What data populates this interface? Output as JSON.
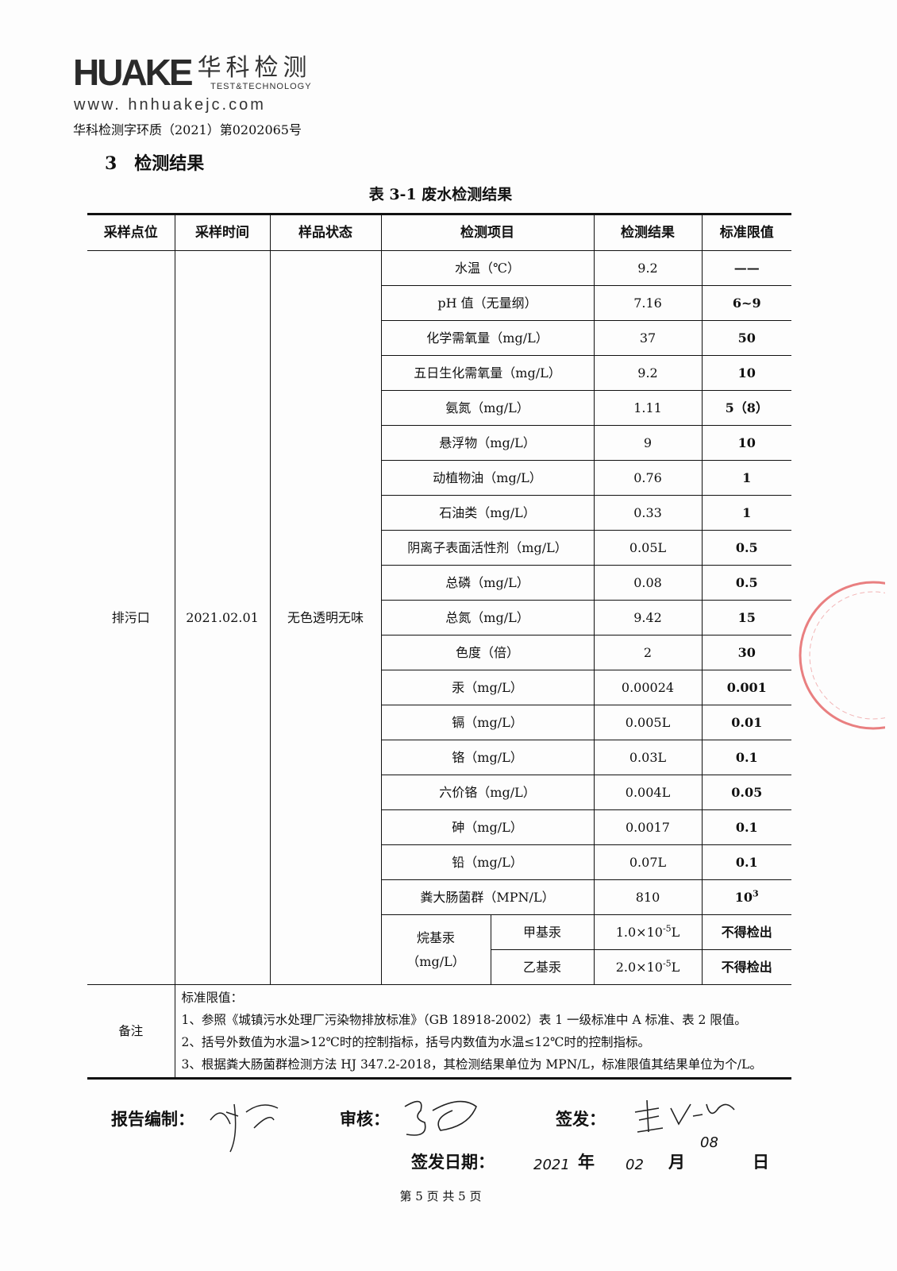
{
  "header": {
    "logo_text": "HUAKE",
    "logo_cn": "华科检测",
    "logo_sub": "TEST&TECHNOLOGY",
    "website": "www. hnhuakejc.com",
    "doc_number": "华科检测字环质（2021）第0202065号"
  },
  "section_title": "3　检测结果",
  "table_title": "表 3-1  废水检测结果",
  "columns": [
    "采样点位",
    "采样时间",
    "样品状态",
    "检测项目",
    "检测结果",
    "标准限值"
  ],
  "sample": {
    "location": "排污口",
    "time": "2021.02.01",
    "state": "无色透明无味"
  },
  "rows": [
    {
      "item": "水温（℃）",
      "result": "9.2",
      "limit": "——"
    },
    {
      "item": "pH 值（无量纲）",
      "result": "7.16",
      "limit": "6~9"
    },
    {
      "item": "化学需氧量（mg/L）",
      "result": "37",
      "limit": "50"
    },
    {
      "item": "五日生化需氧量（mg/L）",
      "result": "9.2",
      "limit": "10"
    },
    {
      "item": "氨氮（mg/L）",
      "result": "1.11",
      "limit": "5（8）"
    },
    {
      "item": "悬浮物（mg/L）",
      "result": "9",
      "limit": "10"
    },
    {
      "item": "动植物油（mg/L）",
      "result": "0.76",
      "limit": "1"
    },
    {
      "item": "石油类（mg/L）",
      "result": "0.33",
      "limit": "1"
    },
    {
      "item": "阴离子表面活性剂（mg/L）",
      "result": "0.05L",
      "limit": "0.5"
    },
    {
      "item": "总磷（mg/L）",
      "result": "0.08",
      "limit": "0.5"
    },
    {
      "item": "总氮（mg/L）",
      "result": "9.42",
      "limit": "15"
    },
    {
      "item": "色度（倍）",
      "result": "2",
      "limit": "30"
    },
    {
      "item": "汞（mg/L）",
      "result": "0.00024",
      "limit": "0.001"
    },
    {
      "item": "镉（mg/L）",
      "result": "0.005L",
      "limit": "0.01"
    },
    {
      "item": "铬（mg/L）",
      "result": "0.03L",
      "limit": "0.1"
    },
    {
      "item": "六价铬（mg/L）",
      "result": "0.004L",
      "limit": "0.05"
    },
    {
      "item": "砷（mg/L）",
      "result": "0.0017",
      "limit": "0.1"
    },
    {
      "item": "铅（mg/L）",
      "result": "0.07L",
      "limit": "0.1"
    }
  ],
  "coliform": {
    "item": "粪大肠菌群（MPN/L）",
    "result": "810",
    "limit_base": "10",
    "limit_exp": "3"
  },
  "alkylmercury": {
    "label": "烷基汞",
    "unit": "（mg/L）",
    "sub": [
      {
        "name": "甲基汞",
        "result_base": "1.0×10",
        "result_exp": "-5",
        "result_suffix": "L",
        "limit": "不得检出"
      },
      {
        "name": "乙基汞",
        "result_base": "2.0×10",
        "result_exp": "-5",
        "result_suffix": "L",
        "limit": "不得检出"
      }
    ]
  },
  "notes": {
    "label": "备注",
    "heading": "标准限值：",
    "lines": [
      "1、参照《城镇污水处理厂污染物排放标准》（GB 18918-2002）表 1 一级标准中 A 标准、表 2 限值。",
      "2、括号外数值为水温>12℃时的控制指标，括号内数值为水温≤12℃时的控制指标。",
      "3、根据粪大肠菌群检测方法 HJ 347.2-2018，其检测结果单位为 MPN/L，标准限值其结果单位为个/L。"
    ]
  },
  "signatures": {
    "compiled_label": "报告编制：",
    "review_label": "审核：",
    "issue_label": "签发：",
    "date_label": "签发日期：",
    "year_unit": "年",
    "month_unit": "月",
    "day_unit": "日",
    "year": "2021",
    "month": "02",
    "day": "08"
  },
  "footer": "第 5 页 共 5 页",
  "colors": {
    "stamp": "#e0484a",
    "text": "#111111"
  }
}
